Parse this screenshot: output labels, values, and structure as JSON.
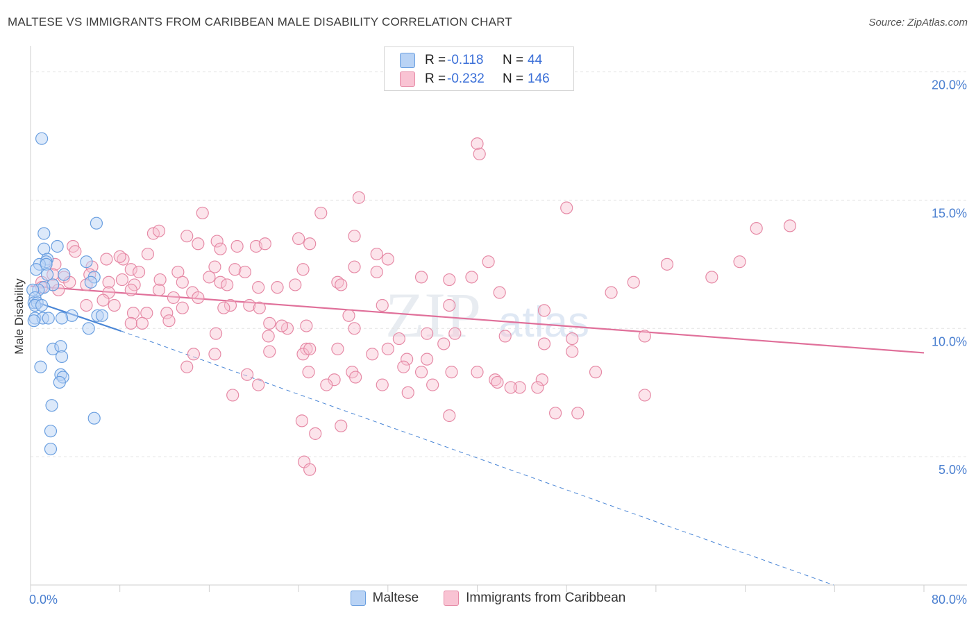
{
  "title": "MALTESE VS IMMIGRANTS FROM CARIBBEAN MALE DISABILITY CORRELATION CHART",
  "source": "Source: ZipAtlas.com",
  "watermark": {
    "zip": "ZIP",
    "atlas": "atlas"
  },
  "legend": {
    "r_label": "R =",
    "n_label": "N =",
    "rows": [
      {
        "r": "-0.118",
        "n": "44",
        "fill": "#b9d3f5",
        "stroke": "#6a9fe0"
      },
      {
        "r": "-0.232",
        "n": "146",
        "fill": "#f9c3d3",
        "stroke": "#e68aa6"
      }
    ]
  },
  "bottom_legend": [
    {
      "label": "Maltese",
      "fill": "#b9d3f5",
      "stroke": "#6a9fe0"
    },
    {
      "label": "Immigrants from Caribbean",
      "fill": "#f9c3d3",
      "stroke": "#e68aa6"
    }
  ],
  "chart_data": {
    "type": "scatter",
    "title": "MALTESE VS IMMIGRANTS FROM CARIBBEAN MALE DISABILITY CORRELATION CHART",
    "xlabel": "",
    "ylabel": "Male Disability",
    "xlim": [
      0,
      80
    ],
    "ylim": [
      0,
      20.8
    ],
    "x_tick_labels": [
      {
        "value": 0,
        "label": "0.0%"
      },
      {
        "value": 80,
        "label": "80.0%"
      }
    ],
    "y_ticks": [
      {
        "value": 5,
        "label": "5.0%"
      },
      {
        "value": 10,
        "label": "10.0%"
      },
      {
        "value": 15,
        "label": "15.0%"
      },
      {
        "value": 20,
        "label": "20.0%"
      }
    ],
    "grid": "horizontal dashed",
    "colors": {
      "maltese": "#4a86d6",
      "caribbean": "#e0709a",
      "tick_label": "#4a7fd0"
    },
    "series": [
      {
        "name": "Maltese",
        "trend": {
          "x": [
            0,
            8.1
          ],
          "y": [
            11.1,
            9.9
          ]
        },
        "trend_extension": {
          "x": [
            8.1,
            71.9
          ],
          "y": [
            9.9,
            0
          ]
        },
        "points": [
          [
            1.0,
            17.4
          ],
          [
            5.9,
            14.1
          ],
          [
            1.2,
            13.7
          ],
          [
            1.2,
            13.1
          ],
          [
            2.4,
            13.2
          ],
          [
            1.5,
            12.7
          ],
          [
            1.4,
            12.6
          ],
          [
            5.0,
            12.6
          ],
          [
            0.8,
            12.5
          ],
          [
            1.4,
            12.5
          ],
          [
            0.5,
            12.3
          ],
          [
            1.5,
            12.1
          ],
          [
            3.0,
            12.1
          ],
          [
            5.7,
            12.0
          ],
          [
            2.0,
            11.7
          ],
          [
            1.2,
            11.6
          ],
          [
            5.4,
            11.8
          ],
          [
            0.7,
            11.5
          ],
          [
            0.2,
            11.5
          ],
          [
            0.4,
            11.2
          ],
          [
            0.3,
            11.0
          ],
          [
            0.6,
            11.0
          ],
          [
            0.4,
            10.9
          ],
          [
            1.0,
            10.9
          ],
          [
            3.7,
            10.5
          ],
          [
            6.0,
            10.5
          ],
          [
            6.4,
            10.5
          ],
          [
            0.4,
            10.4
          ],
          [
            1.1,
            10.4
          ],
          [
            1.6,
            10.4
          ],
          [
            2.8,
            10.4
          ],
          [
            5.2,
            10.0
          ],
          [
            2.0,
            9.2
          ],
          [
            2.7,
            9.3
          ],
          [
            2.8,
            8.9
          ],
          [
            0.9,
            8.5
          ],
          [
            2.7,
            8.2
          ],
          [
            2.9,
            8.1
          ],
          [
            2.6,
            7.9
          ],
          [
            1.9,
            7.0
          ],
          [
            5.7,
            6.5
          ],
          [
            1.8,
            6.0
          ],
          [
            1.8,
            5.3
          ],
          [
            0.3,
            10.3
          ]
        ]
      },
      {
        "name": "Immigrants from Caribbean",
        "trend": {
          "x": [
            0,
            80
          ],
          "y": [
            11.65,
            9.05
          ]
        },
        "points": [
          [
            40.0,
            17.2
          ],
          [
            40.2,
            16.8
          ],
          [
            29.4,
            15.1
          ],
          [
            48.0,
            14.7
          ],
          [
            15.4,
            14.5
          ],
          [
            26.0,
            14.5
          ],
          [
            65.0,
            13.9
          ],
          [
            68.0,
            14.0
          ],
          [
            11.0,
            13.7
          ],
          [
            11.5,
            13.8
          ],
          [
            14.0,
            13.6
          ],
          [
            16.7,
            13.4
          ],
          [
            24.0,
            13.5
          ],
          [
            25.0,
            13.3
          ],
          [
            29.0,
            13.6
          ],
          [
            15.0,
            13.3
          ],
          [
            18.5,
            13.2
          ],
          [
            20.2,
            13.2
          ],
          [
            21.0,
            13.3
          ],
          [
            17.0,
            13.1
          ],
          [
            3.8,
            13.2
          ],
          [
            4.0,
            13.0
          ],
          [
            6.8,
            12.7
          ],
          [
            8.3,
            12.7
          ],
          [
            8.0,
            12.8
          ],
          [
            10.5,
            12.9
          ],
          [
            31.0,
            12.9
          ],
          [
            32.0,
            12.7
          ],
          [
            41.0,
            12.6
          ],
          [
            2.2,
            12.5
          ],
          [
            5.5,
            12.4
          ],
          [
            9.0,
            12.3
          ],
          [
            16.5,
            12.4
          ],
          [
            18.3,
            12.3
          ],
          [
            19.2,
            12.2
          ],
          [
            24.4,
            12.3
          ],
          [
            29.0,
            12.4
          ],
          [
            31.0,
            12.2
          ],
          [
            2.0,
            12.1
          ],
          [
            3.0,
            12.0
          ],
          [
            5.3,
            12.1
          ],
          [
            9.7,
            12.2
          ],
          [
            13.2,
            12.2
          ],
          [
            16.0,
            12.0
          ],
          [
            35.0,
            12.0
          ],
          [
            37.5,
            11.9
          ],
          [
            39.5,
            12.0
          ],
          [
            57.0,
            12.5
          ],
          [
            61.0,
            12.0
          ],
          [
            63.5,
            12.6
          ],
          [
            1.0,
            11.8
          ],
          [
            2.0,
            11.7
          ],
          [
            3.5,
            11.8
          ],
          [
            5.0,
            11.7
          ],
          [
            7.0,
            11.8
          ],
          [
            8.2,
            11.9
          ],
          [
            9.3,
            11.7
          ],
          [
            11.6,
            11.9
          ],
          [
            13.6,
            11.8
          ],
          [
            17.0,
            11.8
          ],
          [
            17.6,
            11.7
          ],
          [
            20.4,
            11.6
          ],
          [
            22.1,
            11.6
          ],
          [
            23.7,
            11.7
          ],
          [
            27.5,
            11.8
          ],
          [
            27.8,
            11.7
          ],
          [
            42.0,
            11.4
          ],
          [
            52.0,
            11.4
          ],
          [
            54.0,
            11.8
          ],
          [
            1.0,
            11.6
          ],
          [
            2.5,
            11.5
          ],
          [
            7.0,
            11.4
          ],
          [
            9.0,
            11.5
          ],
          [
            11.5,
            11.5
          ],
          [
            12.8,
            11.2
          ],
          [
            14.5,
            11.4
          ],
          [
            17.9,
            10.9
          ],
          [
            15.0,
            11.2
          ],
          [
            6.5,
            11.1
          ],
          [
            5.0,
            10.9
          ],
          [
            7.5,
            10.9
          ],
          [
            9.2,
            10.6
          ],
          [
            10.4,
            10.6
          ],
          [
            12.2,
            10.6
          ],
          [
            13.6,
            10.8
          ],
          [
            17.3,
            10.8
          ],
          [
            19.6,
            10.9
          ],
          [
            20.5,
            10.8
          ],
          [
            21.4,
            10.2
          ],
          [
            23.0,
            10.0
          ],
          [
            24.7,
            10.1
          ],
          [
            28.5,
            10.5
          ],
          [
            29.0,
            10.0
          ],
          [
            31.5,
            10.9
          ],
          [
            37.5,
            10.9
          ],
          [
            46.0,
            10.7
          ],
          [
            12.4,
            10.3
          ],
          [
            9.0,
            10.2
          ],
          [
            10.0,
            10.2
          ],
          [
            16.6,
            9.8
          ],
          [
            21.3,
            9.7
          ],
          [
            22.5,
            10.1
          ],
          [
            33.0,
            9.6
          ],
          [
            35.5,
            9.8
          ],
          [
            38.0,
            9.8
          ],
          [
            42.5,
            9.7
          ],
          [
            46.0,
            9.4
          ],
          [
            48.5,
            9.6
          ],
          [
            55.0,
            9.7
          ],
          [
            24.7,
            9.2
          ],
          [
            21.4,
            9.1
          ],
          [
            14.6,
            9.0
          ],
          [
            27.5,
            9.2
          ],
          [
            32.0,
            9.2
          ],
          [
            33.7,
            8.8
          ],
          [
            35.5,
            8.8
          ],
          [
            37.0,
            9.4
          ],
          [
            48.5,
            9.1
          ],
          [
            16.5,
            9.0
          ],
          [
            24.4,
            9.0
          ],
          [
            25.0,
            9.2
          ],
          [
            30.6,
            9.0
          ],
          [
            14.0,
            8.5
          ],
          [
            19.4,
            8.2
          ],
          [
            24.9,
            8.3
          ],
          [
            28.8,
            8.3
          ],
          [
            29.1,
            8.1
          ],
          [
            33.4,
            8.5
          ],
          [
            35.0,
            8.3
          ],
          [
            36.0,
            7.8
          ],
          [
            37.7,
            8.3
          ],
          [
            40.0,
            8.3
          ],
          [
            41.6,
            8.0
          ],
          [
            43.8,
            7.7
          ],
          [
            45.8,
            8.0
          ],
          [
            50.6,
            8.3
          ],
          [
            27.2,
            8.0
          ],
          [
            26.5,
            7.8
          ],
          [
            45.4,
            7.7
          ],
          [
            31.5,
            7.8
          ],
          [
            18.1,
            7.4
          ],
          [
            20.4,
            7.8
          ],
          [
            33.8,
            7.5
          ],
          [
            55.0,
            7.4
          ],
          [
            47.0,
            6.7
          ],
          [
            49.0,
            6.7
          ],
          [
            37.5,
            6.6
          ],
          [
            24.3,
            6.4
          ],
          [
            27.8,
            6.2
          ],
          [
            25.5,
            5.9
          ],
          [
            24.5,
            4.8
          ],
          [
            25.0,
            4.5
          ],
          [
            43.0,
            7.7
          ],
          [
            41.8,
            7.9
          ]
        ]
      }
    ]
  }
}
